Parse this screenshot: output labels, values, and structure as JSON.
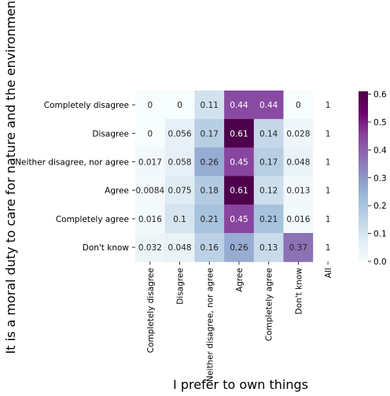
{
  "chart_data": {
    "type": "heatmap",
    "xlabel": "I prefer to own things",
    "ylabel": "It is a moral duty to care for nature and the environment",
    "x_categories": [
      "Completely disagree",
      "Disagree",
      "Neither disagree, nor agree",
      "Agree",
      "Completely agree",
      "Don't know",
      "All"
    ],
    "y_categories": [
      "Completely disagree",
      "Disagree",
      "Neither disagree, nor agree",
      "Agree",
      "Completely agree",
      "Don't know"
    ],
    "values": [
      [
        0,
        0,
        0.11,
        0.44,
        0.44,
        0,
        1
      ],
      [
        0,
        0.056,
        0.17,
        0.61,
        0.14,
        0.028,
        1
      ],
      [
        0.017,
        0.058,
        0.26,
        0.45,
        0.17,
        0.048,
        1
      ],
      [
        0.0084,
        0.075,
        0.18,
        0.61,
        0.12,
        0.013,
        1
      ],
      [
        0.016,
        0.1,
        0.21,
        0.45,
        0.21,
        0.016,
        1
      ],
      [
        0.032,
        0.048,
        0.16,
        0.26,
        0.13,
        0.37,
        1
      ]
    ],
    "labels": [
      [
        "0",
        "0",
        "0.11",
        "0.44",
        "0.44",
        "0",
        "1"
      ],
      [
        "0",
        "0.056",
        "0.17",
        "0.61",
        "0.14",
        "0.028",
        "1"
      ],
      [
        "0.017",
        "0.058",
        "0.26",
        "0.45",
        "0.17",
        "0.048",
        "1"
      ],
      [
        "0.0084",
        "0.075",
        "0.18",
        "0.61",
        "0.12",
        "0.013",
        "1"
      ],
      [
        "0.016",
        "0.1",
        "0.21",
        "0.45",
        "0.21",
        "0.016",
        "1"
      ],
      [
        "0.032",
        "0.048",
        "0.16",
        "0.26",
        "0.13",
        "0.37",
        "1"
      ]
    ],
    "colormap": "BuPu",
    "vmin": 0,
    "vmax": 0.61,
    "colorbar_ticks": [
      "0.0",
      "0.1",
      "0.2",
      "0.3",
      "0.4",
      "0.5",
      "0.6"
    ],
    "colorbar_tick_values": [
      0,
      0.1,
      0.2,
      0.3,
      0.4,
      0.5,
      0.6
    ],
    "gradient_colors": [
      "#f7fcfd",
      "#e0ecf4",
      "#bfd3e6",
      "#9ebcda",
      "#8c96c6",
      "#8c6bb1",
      "#88419d",
      "#6e016b",
      "#4d004b"
    ]
  }
}
